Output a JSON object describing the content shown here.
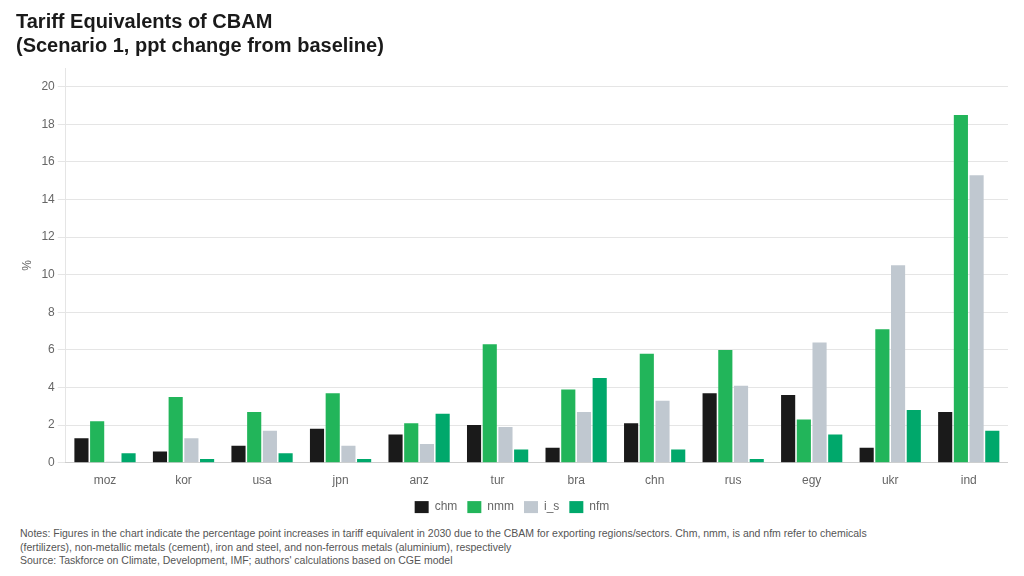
{
  "chart_data": {
    "type": "bar",
    "title": "Tariff Equivalents of CBAM",
    "subtitle": "(Scenario 1, ppt change from baseline)",
    "ylabel": "%",
    "categories": [
      "moz",
      "kor",
      "usa",
      "jpn",
      "anz",
      "tur",
      "bra",
      "chn",
      "rus",
      "egy",
      "ukr",
      "ind"
    ],
    "series": [
      {
        "name": "chm",
        "color": "#1a1a1a",
        "values": [
          1.3,
          0.6,
          0.9,
          1.8,
          1.5,
          2.0,
          0.8,
          2.1,
          3.7,
          3.6,
          0.8,
          2.7
        ]
      },
      {
        "name": "nmm",
        "color": "#22b55a",
        "values": [
          2.2,
          3.5,
          2.7,
          3.7,
          2.1,
          6.3,
          3.9,
          5.8,
          6.0,
          2.3,
          7.1,
          18.5
        ]
      },
      {
        "name": "i_s",
        "color": "#c0c8d0",
        "values": [
          0.05,
          1.3,
          1.7,
          0.9,
          1.0,
          1.9,
          2.7,
          3.3,
          4.1,
          6.4,
          10.5,
          15.3
        ]
      },
      {
        "name": "nfm",
        "color": "#00a86b",
        "values": [
          0.5,
          0.2,
          0.5,
          0.2,
          2.6,
          0.7,
          4.5,
          0.7,
          0.2,
          1.5,
          2.8,
          1.7
        ]
      }
    ],
    "ylim": [
      0,
      21
    ],
    "yticks": [
      0,
      2,
      4,
      6,
      8,
      10,
      12,
      14,
      16,
      18,
      20
    ],
    "grid": true,
    "legend": "bottom",
    "notes": [
      "Notes: Figures in the chart indicate the percentage point increases in tariff equivalent in 2030 due to the CBAM for exporting regions/sectors. Chm, nmm, is and nfm refer to chemicals",
      "(fertilizers), non-metallic metals (cement), iron and steel, and non-ferrous metals (aluminium), respectively",
      "Source: Taskforce on Climate, Development, IMF; authors' calculations based on CGE model"
    ]
  }
}
